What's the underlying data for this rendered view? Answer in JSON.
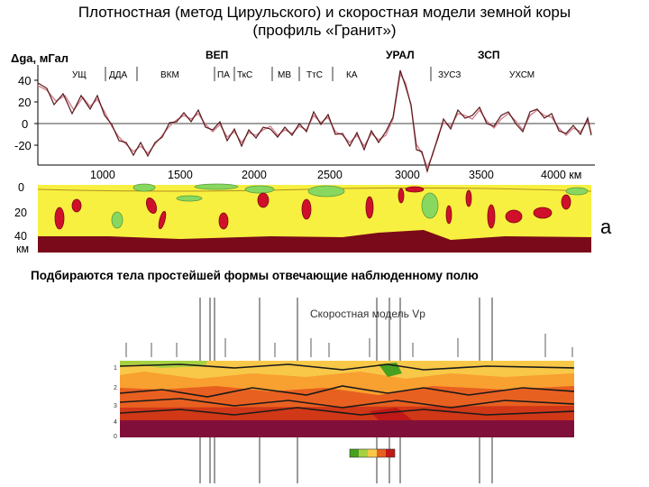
{
  "title": {
    "line1": "Плотностная (метод Цирульского) и скоростная модели земной коры",
    "line2": "(профиль «Гранит»)"
  },
  "gravity_panel": {
    "ylabel": "Δga, мГал",
    "y_ticks": [
      "40",
      "20",
      "0",
      "-20"
    ],
    "x_ticks": [
      "1000",
      "1500",
      "2000",
      "2500",
      "3000",
      "3500",
      "4000 км"
    ],
    "regions": [
      "ВЕП",
      "УРАЛ",
      "ЗСП"
    ],
    "zones": [
      "УЩ",
      "ДДА",
      "ВКМ",
      "ПА",
      "ТкС",
      "МВ",
      "ТтС",
      "КА",
      "ЗУСЗ",
      "УХСМ"
    ]
  },
  "density_panel": {
    "depth_ticks": [
      "0",
      "20",
      "40"
    ],
    "depth_unit": "км",
    "panel_letter": "a"
  },
  "caption": "Подбираются тела простейшей формы отвечающие наблюденному полю",
  "velocity_panel": {
    "title": "Скоростная модель Vp"
  },
  "colors": {
    "observed_curve": "#7a2020",
    "model_curve": "#d08090",
    "crust_yellow": "#f8f040",
    "mantle": "#7a0a1a",
    "body_red": "#d0102a",
    "body_green": "#88d860"
  }
}
